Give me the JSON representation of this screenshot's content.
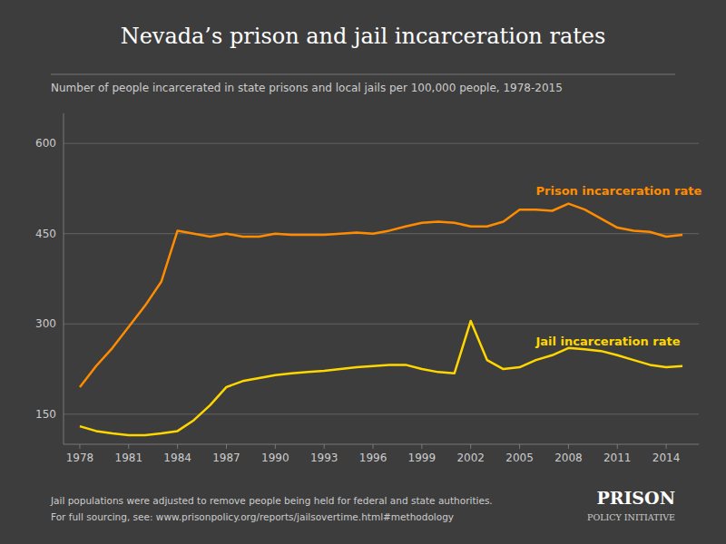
{
  "chart_data": {
    "type": "line",
    "title": "Nevada’s prison and jail incarceration rates",
    "subtitle": "Number of people incarcerated in state prisons and local jails per 100,000 people, 1978-2015",
    "annotations": [
      "Jail populations were adjusted to remove people being held for federal and state authorities.",
      "For full sourcing, see: www.prisonpolicy.org/reports/jailsovertime.html#methodology",
      "PRISON",
      "POLICY INITIATIVE"
    ],
    "x": [
      1978,
      1979,
      1980,
      1981,
      1982,
      1983,
      1984,
      1985,
      1986,
      1987,
      1988,
      1989,
      1990,
      1991,
      1992,
      1993,
      1994,
      1995,
      1996,
      1997,
      1998,
      1999,
      2000,
      2001,
      2002,
      2003,
      2004,
      2005,
      2006,
      2007,
      2008,
      2009,
      2010,
      2011,
      2012,
      2013,
      2014,
      2015
    ],
    "series": [
      {
        "name": "Prison incarceration rate",
        "color": "#ff8c00",
        "values": [
          195,
          230,
          260,
          295,
          330,
          370,
          455,
          450,
          445,
          450,
          445,
          445,
          450,
          448,
          448,
          448,
          450,
          452,
          450,
          455,
          462,
          468,
          470,
          468,
          462,
          462,
          470,
          490,
          490,
          488,
          500,
          490,
          475,
          460,
          455,
          453,
          445,
          448
        ]
      },
      {
        "name": "Jail incarceration rate",
        "color": "#ffd700",
        "values": [
          130,
          122,
          118,
          115,
          115,
          118,
          122,
          140,
          165,
          195,
          205,
          210,
          215,
          218,
          220,
          222,
          225,
          228,
          230,
          232,
          232,
          225,
          220,
          218,
          305,
          240,
          225,
          228,
          240,
          248,
          260,
          258,
          255,
          248,
          240,
          232,
          228,
          230
        ]
      }
    ],
    "xlim": [
      1977,
      2016
    ],
    "xticks": [
      1978,
      1981,
      1984,
      1987,
      1990,
      1993,
      1996,
      1999,
      2002,
      2005,
      2008,
      2011,
      2014
    ],
    "ylim": [
      100,
      650
    ],
    "yticks": [
      150,
      300,
      450,
      600
    ],
    "grid": true
  }
}
